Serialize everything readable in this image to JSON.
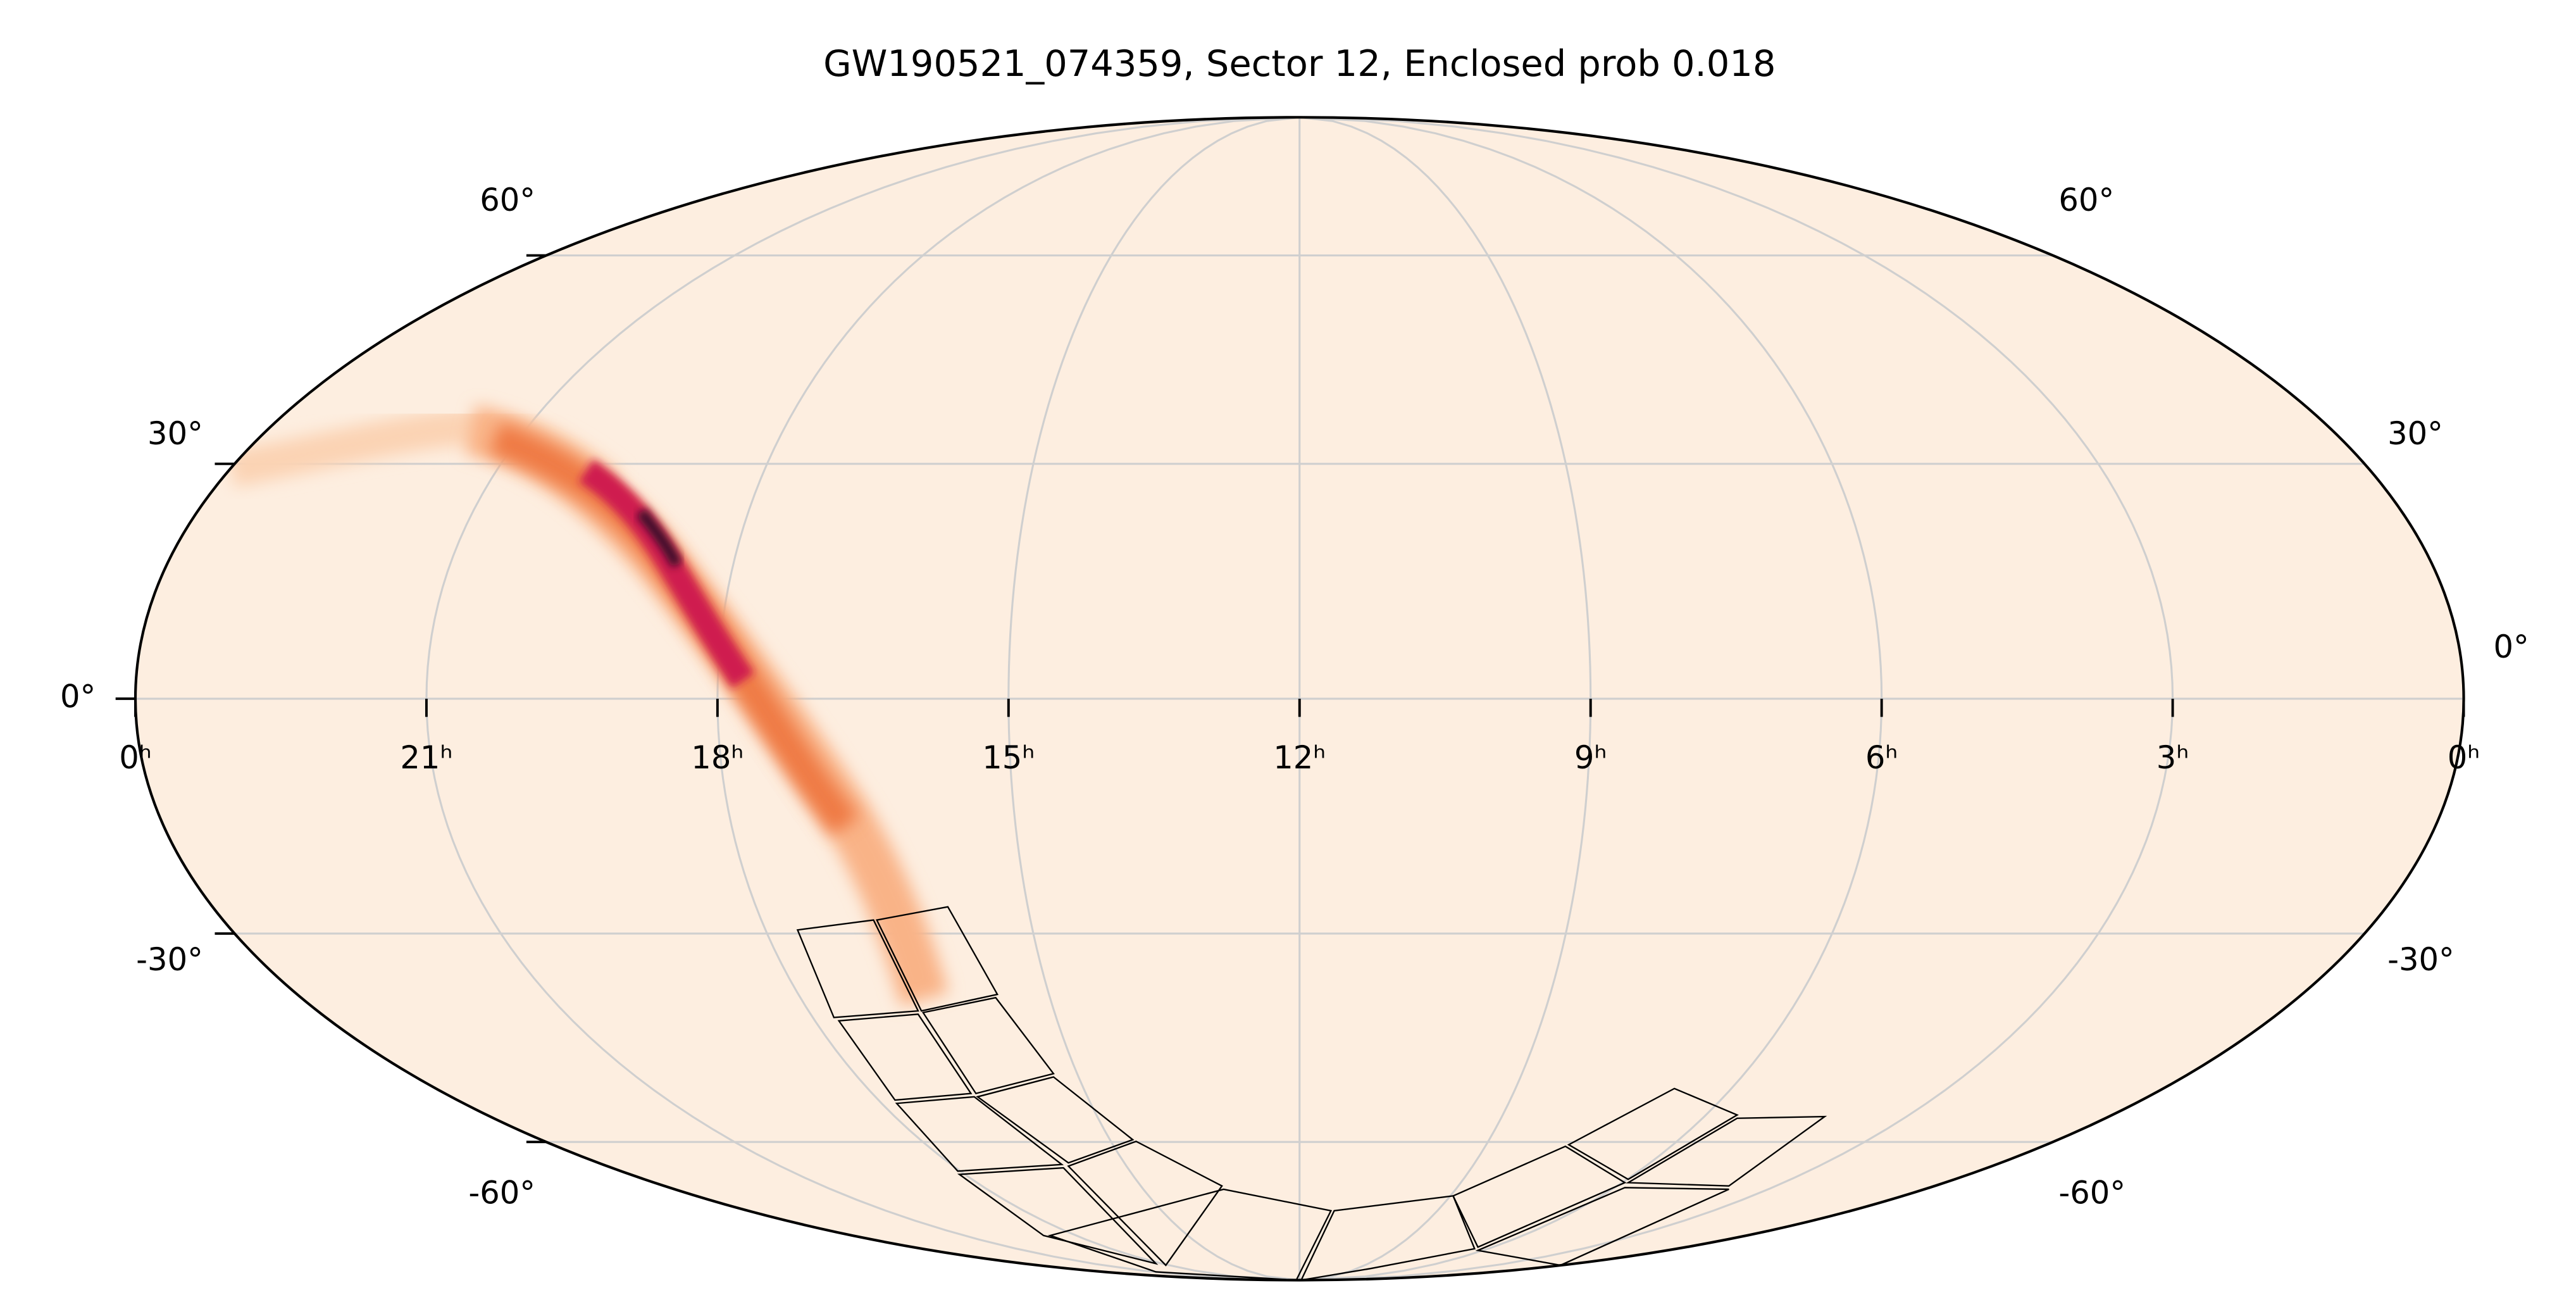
{
  "chart_data": {
    "type": "map",
    "title": "GW190521_074359, Sector 12, Enclosed prob 0.018",
    "projection": "mollweide",
    "xlim": [
      24,
      0
    ],
    "xticks": [
      {
        "value": 24,
        "label": "0ʰ"
      },
      {
        "value": 21,
        "label": "21ʰ"
      },
      {
        "value": 18,
        "label": "18ʰ"
      },
      {
        "value": 15,
        "label": "15ʰ"
      },
      {
        "value": 12,
        "label": "12ʰ"
      },
      {
        "value": 9,
        "label": "9ʰ"
      },
      {
        "value": 6,
        "label": "6ʰ"
      },
      {
        "value": 3,
        "label": "3ʰ"
      },
      {
        "value": 0,
        "label": "0ʰ"
      }
    ],
    "ylim": [
      -90,
      90
    ],
    "yticks": [
      {
        "value": 60,
        "label": "60°"
      },
      {
        "value": 30,
        "label": "30°"
      },
      {
        "value": 0,
        "label": "0°"
      },
      {
        "value": -30,
        "label": "-30°"
      },
      {
        "value": -60,
        "label": "-60°"
      }
    ],
    "grid": true,
    "color": "#fdeee0"
  }
}
